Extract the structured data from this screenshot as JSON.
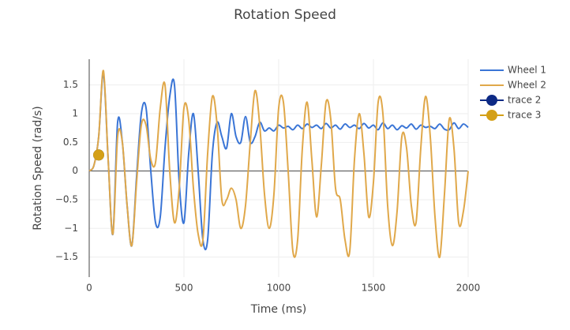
{
  "chart_data": {
    "type": "line",
    "title": "Rotation Speed",
    "x_label": "Time (ms)",
    "y_label": "Rotation Speed (rad/s)",
    "xlim": [
      0,
      2000
    ],
    "xticks": [
      0,
      500,
      1000,
      1500,
      2000
    ],
    "ylim": [
      -1.85,
      1.95
    ],
    "yticks": [
      {
        "value": -1.5,
        "label": "−1.5"
      },
      {
        "value": -1,
        "label": "−1"
      },
      {
        "value": -0.5,
        "label": "−0.5"
      },
      0,
      0.5,
      1,
      1.5
    ],
    "grid": true,
    "legend": "right",
    "series": [
      {
        "name": "Wheel 1",
        "color": "#3a75d6",
        "mode": "line",
        "x": [
          0,
          25,
          50,
          75,
          100,
          125,
          150,
          175,
          200,
          225,
          250,
          275,
          300,
          325,
          350,
          375,
          400,
          425,
          450,
          475,
          500,
          525,
          550,
          575,
          600,
          625,
          650,
          675,
          700,
          725,
          750,
          775,
          800,
          825,
          850,
          875,
          900,
          925,
          950,
          975,
          1000,
          1025,
          1050,
          1075,
          1100,
          1125,
          1150,
          1175,
          1200,
          1225,
          1250,
          1275,
          1300,
          1325,
          1350,
          1375,
          1400,
          1425,
          1450,
          1475,
          1500,
          1525,
          1550,
          1575,
          1600,
          1625,
          1650,
          1675,
          1700,
          1725,
          1750,
          1775,
          1800,
          1825,
          1850,
          1875,
          1900,
          1925,
          1950,
          1975,
          2000
        ],
        "values": [
          0,
          0.1,
          0.6,
          1.7,
          0.2,
          -1.1,
          0.85,
          0.5,
          -0.6,
          -1.3,
          -0.1,
          1.0,
          1.1,
          0.0,
          -0.9,
          -0.8,
          0.4,
          1.3,
          1.5,
          -0.2,
          -0.9,
          0.3,
          1.0,
          0.0,
          -1.2,
          -1.2,
          0.3,
          0.85,
          0.6,
          0.4,
          1.0,
          0.6,
          0.5,
          0.95,
          0.5,
          0.6,
          0.85,
          0.7,
          0.75,
          0.7,
          0.8,
          0.75,
          0.78,
          0.72,
          0.8,
          0.74,
          0.82,
          0.76,
          0.8,
          0.74,
          0.83,
          0.75,
          0.8,
          0.73,
          0.82,
          0.76,
          0.8,
          0.74,
          0.83,
          0.75,
          0.8,
          0.72,
          0.84,
          0.74,
          0.8,
          0.72,
          0.79,
          0.75,
          0.82,
          0.73,
          0.8,
          0.76,
          0.78,
          0.74,
          0.82,
          0.73,
          0.72,
          0.84,
          0.74,
          0.82,
          0.76
        ]
      },
      {
        "name": "Wheel 2",
        "color": "#e0a84a",
        "mode": "line",
        "x": [
          0,
          25,
          50,
          75,
          100,
          125,
          150,
          175,
          200,
          225,
          250,
          275,
          300,
          325,
          350,
          375,
          400,
          425,
          450,
          475,
          500,
          525,
          550,
          575,
          600,
          625,
          650,
          675,
          700,
          725,
          750,
          775,
          800,
          825,
          850,
          875,
          900,
          925,
          950,
          975,
          1000,
          1025,
          1050,
          1075,
          1100,
          1125,
          1150,
          1175,
          1200,
          1225,
          1250,
          1275,
          1300,
          1325,
          1350,
          1375,
          1400,
          1425,
          1450,
          1475,
          1500,
          1525,
          1550,
          1575,
          1600,
          1625,
          1650,
          1675,
          1700,
          1725,
          1750,
          1775,
          1800,
          1825,
          1850,
          1875,
          1900,
          1925,
          1950,
          1975,
          2000
        ],
        "values": [
          0,
          0.1,
          0.6,
          1.75,
          0.2,
          -1.1,
          0.6,
          0.5,
          -0.6,
          -1.3,
          -0.2,
          0.8,
          0.8,
          0.2,
          0.15,
          1.1,
          1.5,
          0.0,
          -0.9,
          -0.3,
          1.1,
          0.9,
          -0.3,
          -1.1,
          -1.2,
          0.3,
          1.3,
          0.8,
          -0.5,
          -0.5,
          -0.3,
          -0.5,
          -1.0,
          -0.6,
          0.5,
          1.4,
          0.8,
          -0.4,
          -1.0,
          -0.4,
          1.1,
          1.2,
          0.0,
          -1.4,
          -1.2,
          0.4,
          1.2,
          0.2,
          -0.8,
          0.1,
          1.2,
          0.9,
          -0.3,
          -0.5,
          -1.2,
          -1.4,
          0.2,
          1.0,
          0.3,
          -0.8,
          -0.2,
          1.2,
          1.0,
          -0.6,
          -1.3,
          -0.7,
          0.6,
          0.4,
          -0.6,
          -0.9,
          0.4,
          1.3,
          0.6,
          -0.8,
          -1.5,
          -0.4,
          0.9,
          0.4,
          -0.9,
          -0.7,
          0.0
        ]
      },
      {
        "name": "trace 2",
        "color": "#0d2a85",
        "mode": "markers",
        "x": [
          50
        ],
        "values": [
          0.28
        ]
      },
      {
        "name": "trace 3",
        "color": "#d4a017",
        "mode": "markers",
        "x": [
          50
        ],
        "values": [
          0.28
        ]
      }
    ]
  }
}
